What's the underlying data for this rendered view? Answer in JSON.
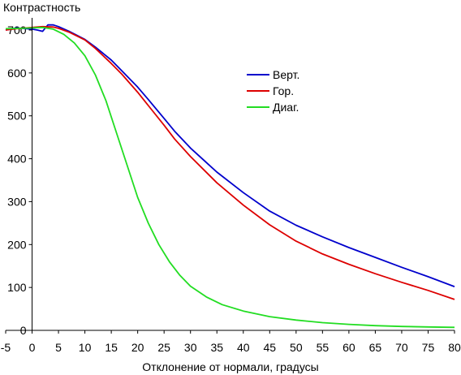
{
  "chart_data": {
    "type": "line",
    "ylabel": "Контрастность",
    "xlabel": "Отклонение от нормали, градусы",
    "xlim": [
      -5,
      80
    ],
    "ylim": [
      0,
      700
    ],
    "x_ticks": [
      -5,
      0,
      5,
      10,
      15,
      20,
      25,
      30,
      35,
      40,
      45,
      50,
      55,
      60,
      65,
      70,
      75,
      80
    ],
    "y_ticks": [
      0,
      100,
      200,
      300,
      400,
      500,
      600,
      700
    ],
    "grid": false,
    "legend_position": "right",
    "series": [
      {
        "name": "Верт.",
        "color": "#0000cc",
        "points": [
          [
            -5,
            700
          ],
          [
            -3,
            705
          ],
          [
            -1,
            703
          ],
          [
            0,
            702
          ],
          [
            1,
            700
          ],
          [
            2,
            697
          ],
          [
            3,
            712
          ],
          [
            4,
            712
          ],
          [
            5,
            708
          ],
          [
            7,
            697
          ],
          [
            10,
            678
          ],
          [
            12,
            660
          ],
          [
            15,
            630
          ],
          [
            17,
            605
          ],
          [
            20,
            567
          ],
          [
            22,
            538
          ],
          [
            25,
            494
          ],
          [
            27,
            464
          ],
          [
            30,
            425
          ],
          [
            35,
            369
          ],
          [
            40,
            321
          ],
          [
            45,
            278
          ],
          [
            50,
            245
          ],
          [
            55,
            218
          ],
          [
            60,
            193
          ],
          [
            65,
            170
          ],
          [
            70,
            147
          ],
          [
            75,
            125
          ],
          [
            80,
            102
          ]
        ]
      },
      {
        "name": "Гор.",
        "color": "#dd0000",
        "points": [
          [
            -5,
            700
          ],
          [
            -3,
            703
          ],
          [
            -1,
            705
          ],
          [
            0,
            706
          ],
          [
            2,
            708
          ],
          [
            4,
            707
          ],
          [
            5,
            704
          ],
          [
            7,
            695
          ],
          [
            10,
            677
          ],
          [
            12,
            657
          ],
          [
            15,
            622
          ],
          [
            17,
            597
          ],
          [
            20,
            555
          ],
          [
            22,
            524
          ],
          [
            25,
            478
          ],
          [
            27,
            446
          ],
          [
            30,
            405
          ],
          [
            35,
            344
          ],
          [
            40,
            292
          ],
          [
            45,
            246
          ],
          [
            50,
            208
          ],
          [
            55,
            178
          ],
          [
            60,
            154
          ],
          [
            65,
            132
          ],
          [
            70,
            112
          ],
          [
            75,
            93
          ],
          [
            80,
            72
          ]
        ]
      },
      {
        "name": "Диаг.",
        "color": "#22dd22",
        "points": [
          [
            -5,
            703
          ],
          [
            -2,
            704
          ],
          [
            0,
            705
          ],
          [
            2,
            706
          ],
          [
            4,
            702
          ],
          [
            6,
            690
          ],
          [
            8,
            670
          ],
          [
            10,
            640
          ],
          [
            12,
            595
          ],
          [
            14,
            535
          ],
          [
            16,
            460
          ],
          [
            18,
            385
          ],
          [
            20,
            310
          ],
          [
            22,
            250
          ],
          [
            24,
            200
          ],
          [
            26,
            160
          ],
          [
            28,
            128
          ],
          [
            30,
            103
          ],
          [
            33,
            78
          ],
          [
            36,
            60
          ],
          [
            40,
            45
          ],
          [
            45,
            32
          ],
          [
            50,
            24
          ],
          [
            55,
            18
          ],
          [
            60,
            14
          ],
          [
            65,
            11
          ],
          [
            70,
            9
          ],
          [
            75,
            8
          ],
          [
            80,
            7
          ]
        ]
      }
    ]
  }
}
